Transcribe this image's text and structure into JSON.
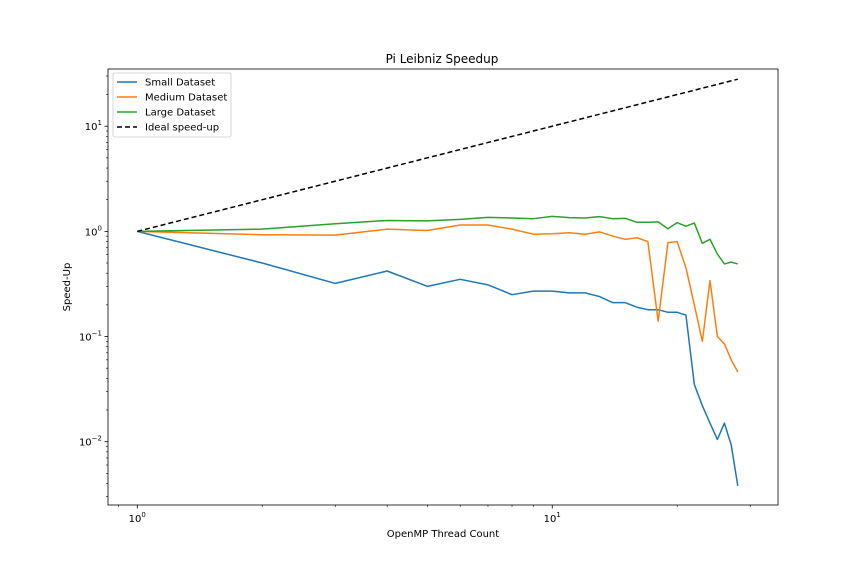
{
  "chart_data": {
    "type": "line",
    "title": "Pi Leibniz Speedup",
    "xlabel": "OpenMP Thread Count",
    "ylabel": "Speed-Up",
    "xscale": "log",
    "yscale": "log",
    "xlim": [
      0.85,
      35
    ],
    "ylim": [
      0.0025,
      35
    ],
    "grid": false,
    "legend_position": "top-left",
    "x_ticks": [
      {
        "value": 1,
        "base": "10",
        "exp": "0"
      },
      {
        "value": 10,
        "base": "10",
        "exp": "1"
      }
    ],
    "y_ticks": [
      {
        "value": 0.01,
        "base": "10",
        "exp": "−2"
      },
      {
        "value": 0.1,
        "base": "10",
        "exp": "−1"
      },
      {
        "value": 1,
        "base": "10",
        "exp": "0"
      },
      {
        "value": 10,
        "base": "10",
        "exp": "1"
      }
    ],
    "series": [
      {
        "name": "Small Dataset",
        "color": "#1f77b4",
        "dash": "",
        "x": [
          1,
          2,
          3,
          4,
          5,
          6,
          7,
          8,
          9,
          10,
          11,
          12,
          13,
          14,
          15,
          16,
          17,
          18,
          19,
          20,
          21,
          22,
          23,
          24,
          25,
          26,
          27,
          28
        ],
        "y": [
          1.0,
          0.5,
          0.32,
          0.42,
          0.3,
          0.35,
          0.31,
          0.25,
          0.27,
          0.27,
          0.26,
          0.26,
          0.24,
          0.21,
          0.21,
          0.19,
          0.18,
          0.18,
          0.17,
          0.17,
          0.16,
          0.035,
          0.022,
          0.015,
          0.0105,
          0.015,
          0.0093,
          0.0038
        ]
      },
      {
        "name": "Medium Dataset",
        "color": "#ff7f0e",
        "dash": "",
        "x": [
          1,
          2,
          3,
          4,
          5,
          6,
          7,
          8,
          9,
          10,
          11,
          12,
          13,
          14,
          15,
          16,
          17,
          18,
          19,
          20,
          21,
          22,
          23,
          24,
          25,
          26,
          27,
          28
        ],
        "y": [
          1.0,
          0.93,
          0.92,
          1.05,
          1.02,
          1.15,
          1.15,
          1.05,
          0.94,
          0.95,
          0.97,
          0.94,
          0.99,
          0.9,
          0.84,
          0.87,
          0.8,
          0.14,
          0.78,
          0.8,
          0.45,
          0.2,
          0.09,
          0.34,
          0.1,
          0.085,
          0.06,
          0.046
        ]
      },
      {
        "name": "Large Dataset",
        "color": "#2ca02c",
        "dash": "",
        "x": [
          1,
          2,
          3,
          4,
          5,
          6,
          7,
          8,
          9,
          10,
          11,
          12,
          13,
          14,
          15,
          16,
          17,
          18,
          19,
          20,
          21,
          22,
          23,
          24,
          25,
          26,
          27,
          28
        ],
        "y": [
          1.0,
          1.05,
          1.18,
          1.27,
          1.26,
          1.3,
          1.36,
          1.34,
          1.32,
          1.39,
          1.35,
          1.34,
          1.38,
          1.32,
          1.33,
          1.22,
          1.22,
          1.23,
          1.06,
          1.21,
          1.12,
          1.2,
          0.77,
          0.84,
          0.61,
          0.49,
          0.51,
          0.49
        ]
      },
      {
        "name": "Ideal speed-up",
        "color": "#000000",
        "dash": "5,3",
        "x": [
          1,
          28
        ],
        "y": [
          1,
          28
        ]
      }
    ]
  }
}
